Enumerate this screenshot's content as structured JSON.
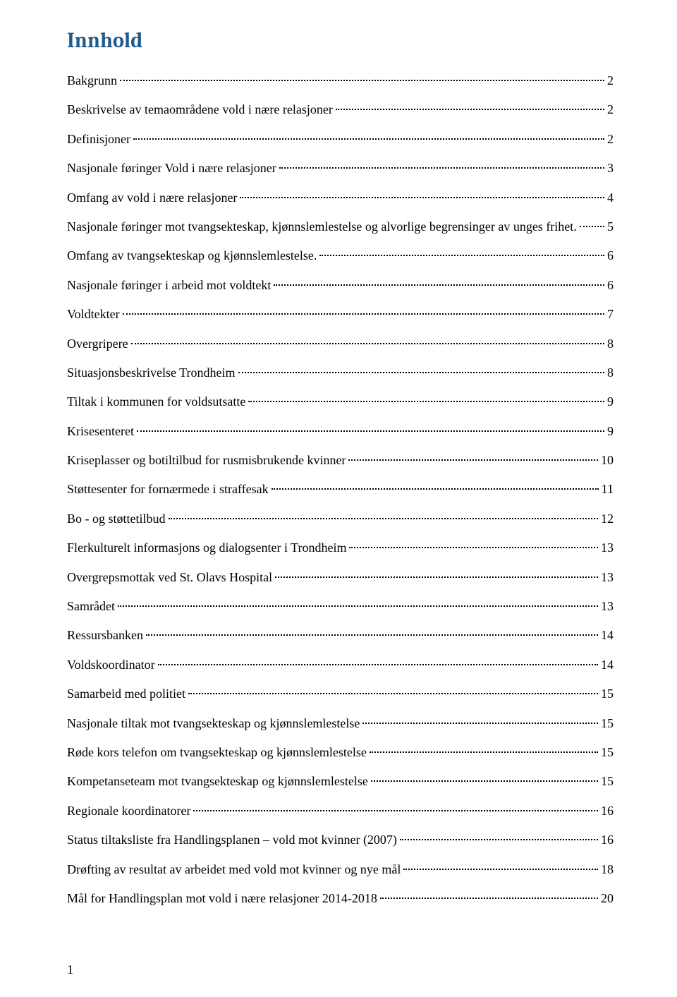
{
  "toc": {
    "title": "Innhold",
    "title_color": "#1f5a8b",
    "title_fontsize": 30,
    "entry_fontsize": 18,
    "text_color": "#000000",
    "dot_color": "#000000",
    "background_color": "#ffffff",
    "entries": [
      {
        "label": "Bakgrunn",
        "page": "2"
      },
      {
        "label": "Beskrivelse av temaområdene vold i nære relasjoner",
        "page": "2"
      },
      {
        "label": "Definisjoner",
        "page": "2"
      },
      {
        "label": "Nasjonale føringer Vold i nære relasjoner",
        "page": "3"
      },
      {
        "label": "Omfang av vold i nære relasjoner",
        "page": "4"
      },
      {
        "label": "Nasjonale føringer mot tvangsekteskap, kjønnslemlestelse og alvorlige begrensinger av unges frihet.",
        "page": "5"
      },
      {
        "label": "Omfang av tvangsekteskap og kjønnslemlestelse.",
        "page": "6"
      },
      {
        "label": "Nasjonale føringer i arbeid mot voldtekt",
        "page": "6"
      },
      {
        "label": "Voldtekter",
        "page": "7"
      },
      {
        "label": "Overgripere",
        "page": "8"
      },
      {
        "label": "Situasjonsbeskrivelse Trondheim",
        "page": "8"
      },
      {
        "label": "Tiltak i kommunen for voldsutsatte",
        "page": "9"
      },
      {
        "label": "Krisesenteret",
        "page": "9"
      },
      {
        "label": "Kriseplasser og  botiltilbud for rusmisbrukende kvinner",
        "page": "10"
      },
      {
        "label": "Støttesenter for fornærmede i straffesak",
        "page": "11"
      },
      {
        "label": "Bo - og støttetilbud",
        "page": "12"
      },
      {
        "label": "Flerkulturelt informasjons og dialogsenter i Trondheim",
        "page": "13"
      },
      {
        "label": "Overgrepsmottak ved St. Olavs Hospital",
        "page": "13"
      },
      {
        "label": "Samrådet",
        "page": "13"
      },
      {
        "label": "Ressursbanken",
        "page": "14"
      },
      {
        "label": "Voldskoordinator",
        "page": "14"
      },
      {
        "label": "Samarbeid med politiet",
        "page": "15"
      },
      {
        "label": "Nasjonale tiltak mot tvangsekteskap og kjønnslemlestelse",
        "page": "15"
      },
      {
        "label": "Røde kors telefon om tvangsekteskap og kjønnslemlestelse",
        "page": "15"
      },
      {
        "label": "Kompetanseteam mot tvangsekteskap og kjønnslemlestelse",
        "page": "15"
      },
      {
        "label": "Regionale koordinatorer",
        "page": "16"
      },
      {
        "label": "Status tiltaksliste fra Handlingsplanen – vold mot kvinner (2007)",
        "page": "16"
      },
      {
        "label": "Drøfting av resultat av arbeidet med vold mot kvinner og nye mål",
        "page": "18"
      },
      {
        "label": "Mål for Handlingsplan mot vold i nære relasjoner 2014-2018",
        "page": "20"
      }
    ]
  },
  "footer": {
    "page_number": "1"
  }
}
